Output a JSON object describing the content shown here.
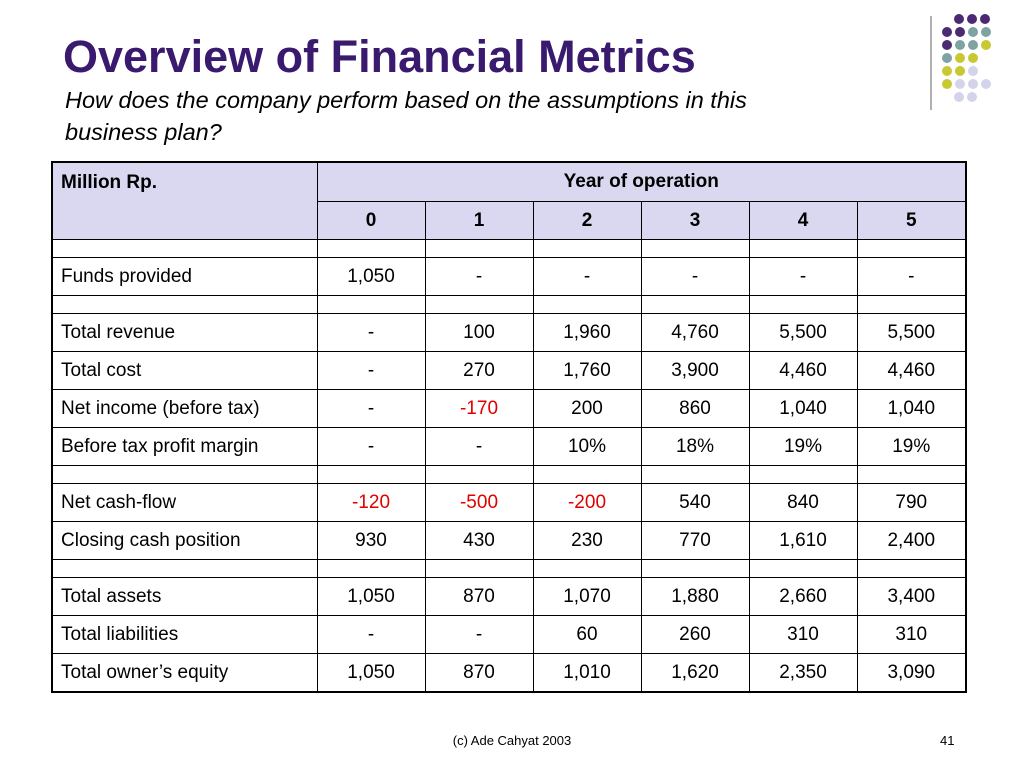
{
  "slide": {
    "title": "Overview of Financial Metrics",
    "subtitle": "How does the company perform based on the assumptions in this business plan?",
    "footer": "(c) Ade Cahyat 2003",
    "page_number": "41"
  },
  "table": {
    "unit_label": "Million Rp.",
    "year_header": "Year of operation",
    "years": [
      "0",
      "1",
      "2",
      "3",
      "4",
      "5"
    ],
    "groups": [
      {
        "rows": [
          {
            "label": "Funds provided",
            "values": [
              "1,050",
              "-",
              "-",
              "-",
              "-",
              "-"
            ]
          }
        ]
      },
      {
        "rows": [
          {
            "label": "Total revenue",
            "values": [
              "-",
              "100",
              "1,960",
              "4,760",
              "5,500",
              "5,500"
            ]
          },
          {
            "label": "Total cost",
            "values": [
              "-",
              "270",
              "1,760",
              "3,900",
              "4,460",
              "4,460"
            ]
          },
          {
            "label": "Net income (before tax)",
            "values": [
              "-",
              "-170",
              "200",
              "860",
              "1,040",
              "1,040"
            ]
          },
          {
            "label": "Before tax profit margin",
            "values": [
              "-",
              "-",
              "10%",
              "18%",
              "19%",
              "19%"
            ]
          }
        ]
      },
      {
        "rows": [
          {
            "label": "Net cash-flow",
            "values": [
              "-120",
              "-500",
              "-200",
              "540",
              "840",
              "790"
            ]
          },
          {
            "label": "Closing cash position",
            "values": [
              "930",
              "430",
              "230",
              "770",
              "1,610",
              "2,400"
            ]
          }
        ]
      },
      {
        "rows": [
          {
            "label": "Total assets",
            "values": [
              "1,050",
              "870",
              "1,070",
              "1,880",
              "2,660",
              "3,400"
            ]
          },
          {
            "label": "Total liabilities",
            "values": [
              "-",
              "-",
              "60",
              "260",
              "310",
              "310"
            ]
          },
          {
            "label": "Total owner’s equity",
            "values": [
              "1,050",
              "870",
              "1,010",
              "1,620",
              "2,350",
              "3,090"
            ]
          }
        ]
      }
    ]
  },
  "colors": {
    "title": "#3a1a6e",
    "header_bg": "#d9d8f0",
    "negative": "#e00000",
    "dot_purple": "#4b2a73",
    "dot_teal": "#7fa3a3",
    "dot_yellow": "#c8c832",
    "dot_lavender": "#d3d3ea"
  },
  "decoration": {
    "icon": "dot-grid-icon"
  }
}
